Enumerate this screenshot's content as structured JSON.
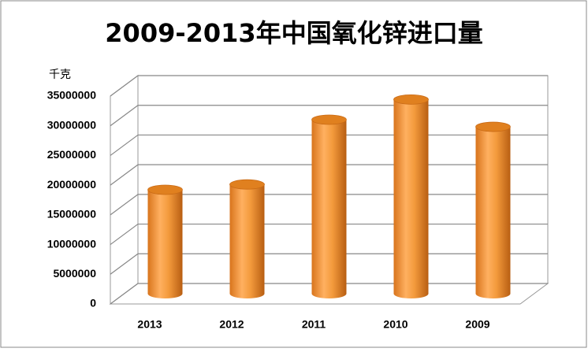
{
  "chart_data": {
    "type": "bar3d",
    "title": "2009-2013年中国氧化锌进口量",
    "y_unit": "千克",
    "categories": [
      "2013",
      "2012",
      "2011",
      "2010",
      "2009"
    ],
    "values": [
      17500000,
      18400000,
      29300000,
      32700000,
      28100000
    ],
    "color": "#f39a3c",
    "ylim": [
      0,
      35000000
    ],
    "yticks": [
      0,
      5000000,
      10000000,
      15000000,
      20000000,
      25000000,
      30000000,
      35000000
    ],
    "grid": true
  }
}
